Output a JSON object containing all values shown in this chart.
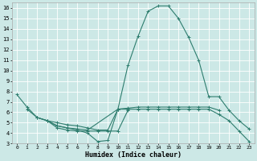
{
  "xlabel": "Humidex (Indice chaleur)",
  "background_color": "#cce8e6",
  "grid_color": "#ffffff",
  "line_color": "#2e7d6e",
  "xlim": [
    -0.5,
    23.5
  ],
  "ylim": [
    3,
    16.5
  ],
  "xticks": [
    0,
    1,
    2,
    3,
    4,
    5,
    6,
    7,
    8,
    9,
    10,
    11,
    12,
    13,
    14,
    15,
    16,
    17,
    18,
    19,
    20,
    21,
    22,
    23
  ],
  "yticks": [
    3,
    4,
    5,
    6,
    7,
    8,
    9,
    10,
    11,
    12,
    13,
    14,
    15,
    16
  ],
  "lines": [
    {
      "x": [
        0,
        1,
        2,
        3,
        4,
        5,
        6,
        7,
        8,
        9,
        10,
        11,
        12,
        13,
        14,
        15,
        16,
        17,
        18,
        19,
        20,
        21,
        22,
        23
      ],
      "y": [
        7.7,
        6.5,
        5.5,
        5.2,
        4.7,
        4.5,
        4.3,
        4.0,
        3.2,
        3.3,
        6.3,
        10.5,
        13.3,
        15.7,
        16.2,
        16.2,
        15.0,
        13.2,
        11.0,
        7.5,
        7.5,
        6.2,
        5.2,
        4.4
      ]
    },
    {
      "x": [
        1,
        2,
        3,
        4,
        5,
        6,
        7,
        8,
        9,
        10,
        11
      ],
      "y": [
        6.3,
        5.5,
        5.2,
        4.5,
        4.3,
        4.2,
        4.2,
        4.2,
        4.2,
        4.2,
        6.2
      ]
    },
    {
      "x": [
        2,
        3,
        4,
        5,
        6,
        7,
        10,
        11,
        12,
        13,
        14,
        15,
        16,
        17,
        18,
        19,
        20
      ],
      "y": [
        5.5,
        5.2,
        4.7,
        4.5,
        4.4,
        4.3,
        6.3,
        6.4,
        6.5,
        6.5,
        6.5,
        6.5,
        6.5,
        6.5,
        6.5,
        6.5,
        6.2
      ]
    },
    {
      "x": [
        3,
        4,
        5,
        6,
        7,
        8,
        9,
        10,
        11,
        12,
        13,
        14,
        15,
        16,
        17,
        18,
        19,
        20,
        21,
        22,
        23
      ],
      "y": [
        5.2,
        5.0,
        4.8,
        4.7,
        4.5,
        4.3,
        4.3,
        6.3,
        6.3,
        6.3,
        6.3,
        6.3,
        6.3,
        6.3,
        6.3,
        6.3,
        6.3,
        5.8,
        5.2,
        4.2,
        3.2
      ]
    }
  ]
}
